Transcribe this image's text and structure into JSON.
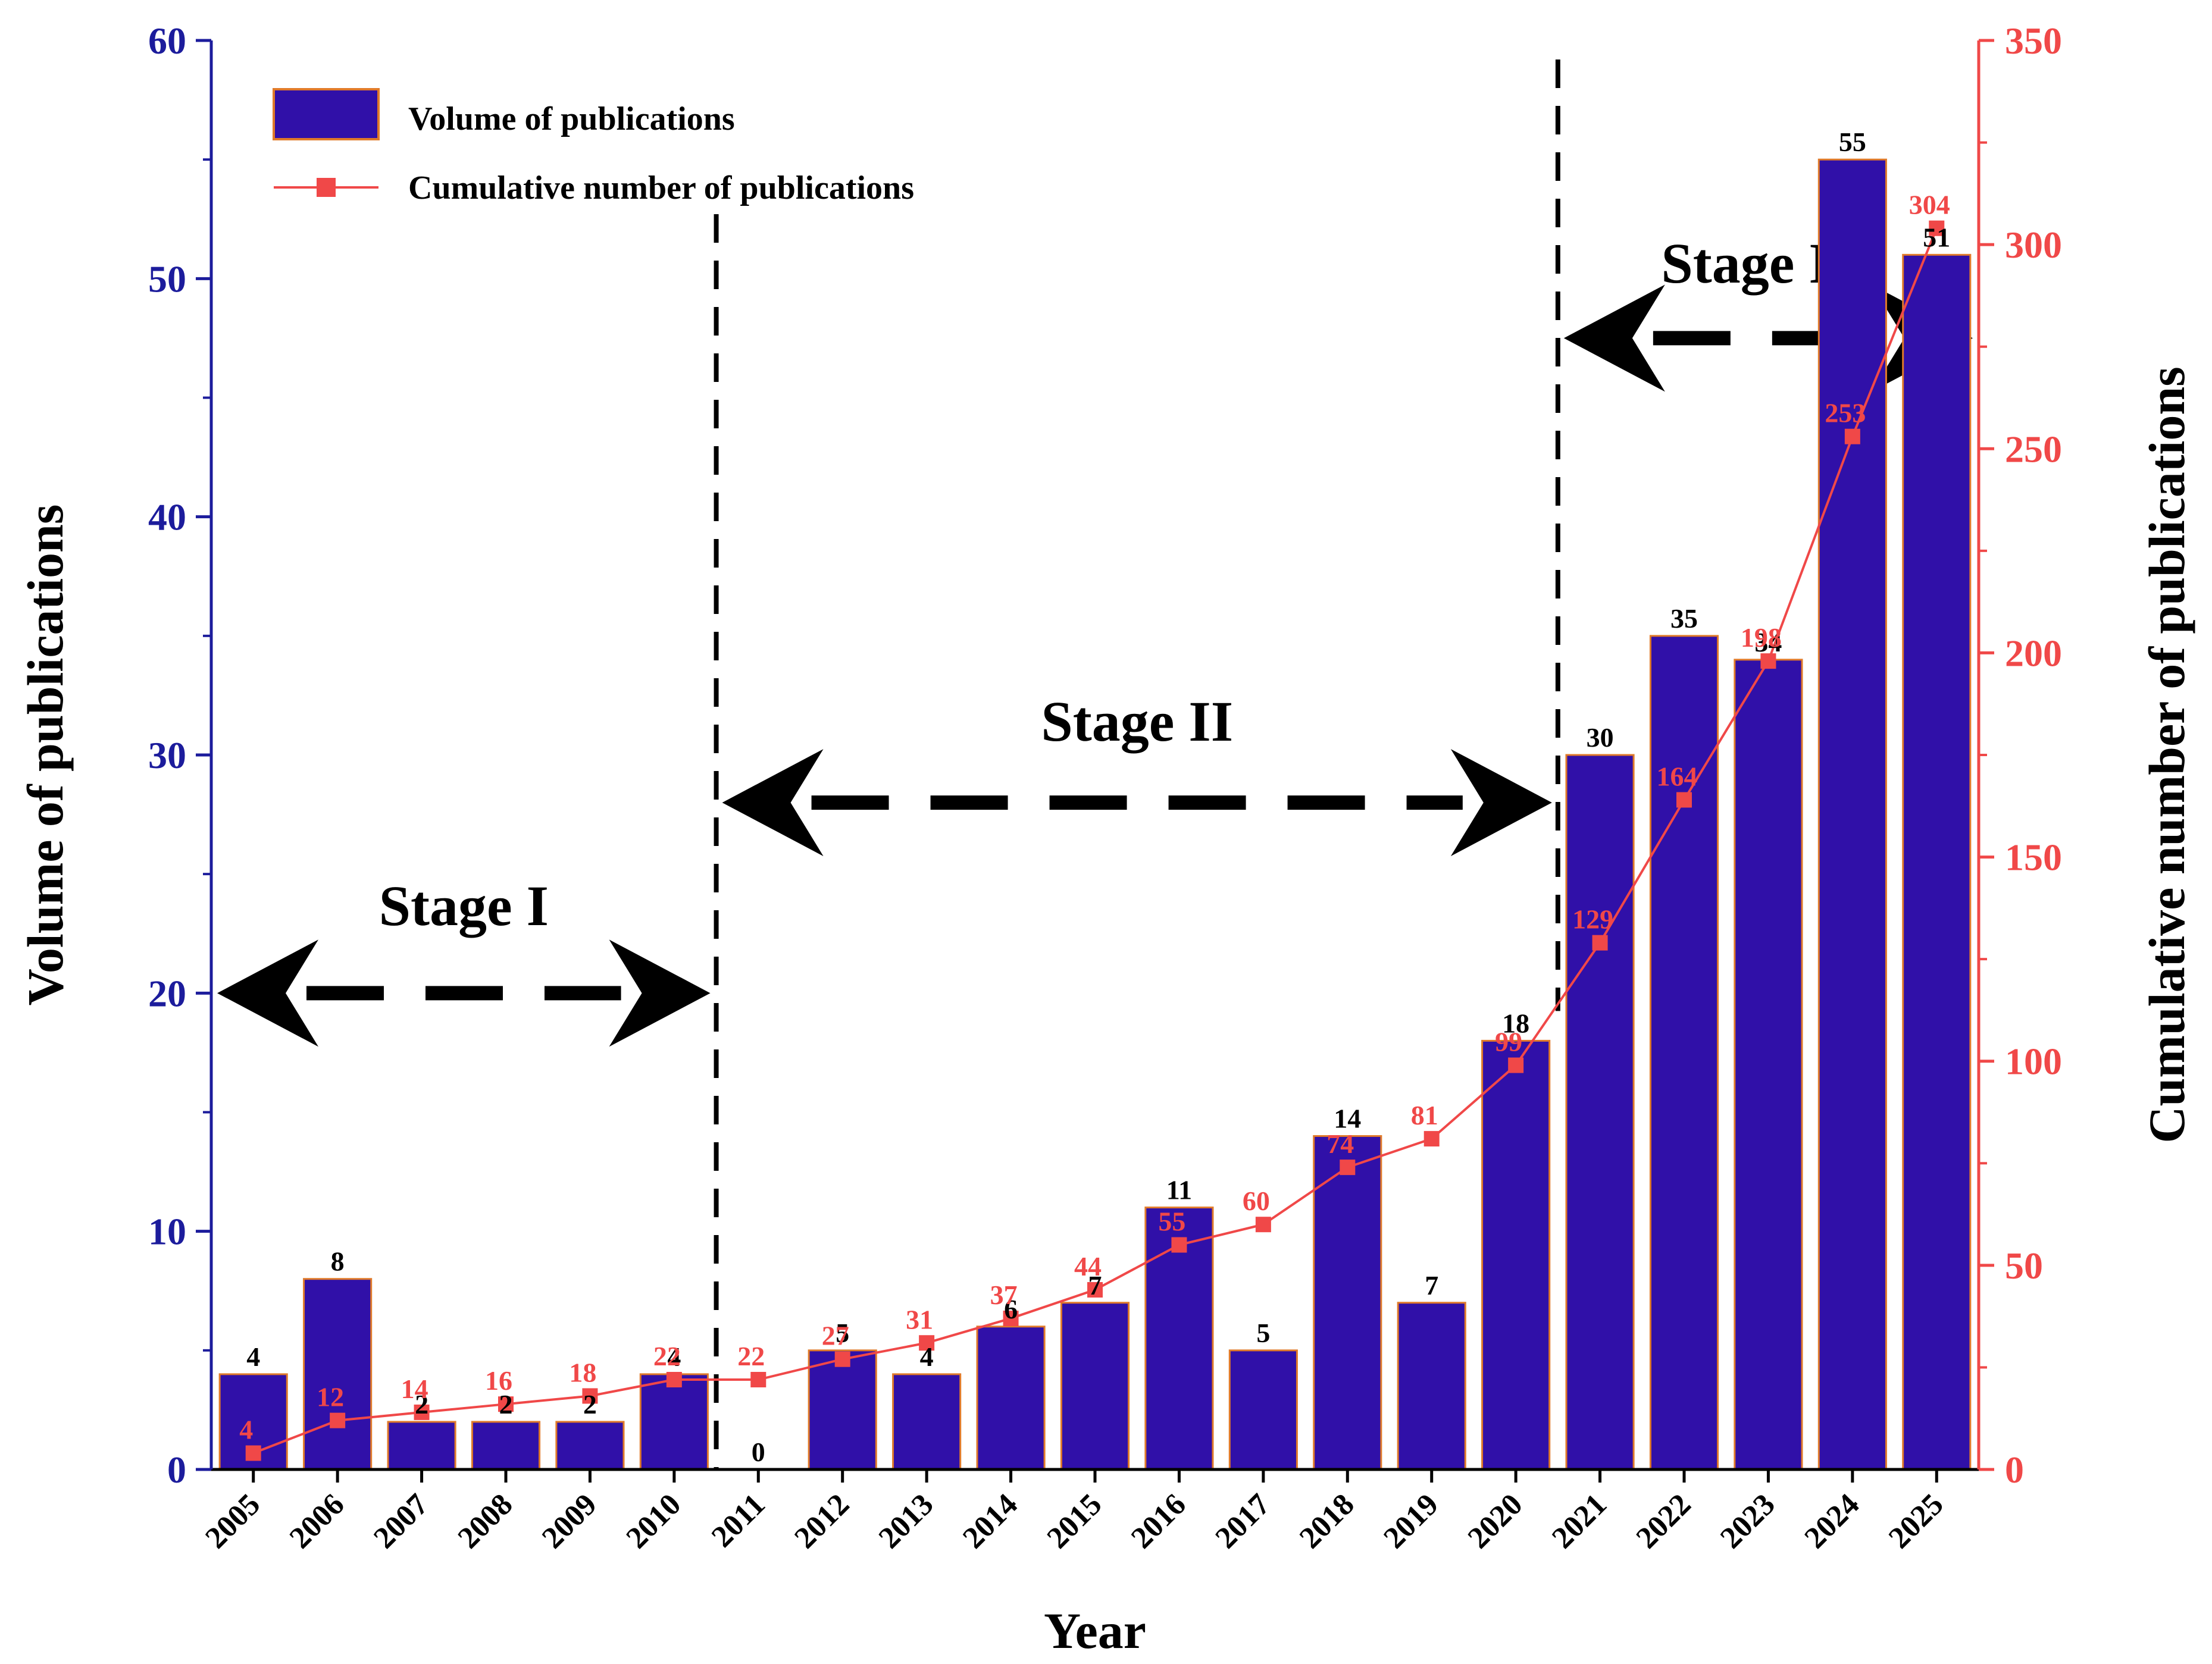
{
  "chart_data": {
    "type": "bar",
    "categories": [
      "2005",
      "2006",
      "2007",
      "2008",
      "2009",
      "2010",
      "2011",
      "2012",
      "2013",
      "2014",
      "2015",
      "2016",
      "2017",
      "2018",
      "2019",
      "2020",
      "2021",
      "2022",
      "2023",
      "2024",
      "2025"
    ],
    "series": [
      {
        "name": "Volume of publications",
        "type": "bar",
        "axis": "left",
        "values": [
          4,
          8,
          2,
          2,
          2,
          4,
          0,
          5,
          4,
          6,
          7,
          11,
          5,
          14,
          7,
          18,
          30,
          35,
          34,
          55,
          51
        ]
      },
      {
        "name": "Cumulative number of publications",
        "type": "line",
        "axis": "right",
        "values": [
          4,
          12,
          14,
          16,
          18,
          22,
          22,
          27,
          31,
          37,
          44,
          55,
          60,
          74,
          81,
          99,
          129,
          164,
          198,
          253,
          304
        ]
      }
    ],
    "xlabel": "Year",
    "ylabel": "Volume of publications",
    "y2label": "Cumulative number of publications",
    "ylim": [
      0,
      60
    ],
    "y2lim": [
      0,
      350
    ],
    "yticks": [
      0,
      10,
      20,
      30,
      40,
      50,
      60
    ],
    "y2ticks": [
      0,
      50,
      100,
      150,
      200,
      250,
      300,
      350
    ],
    "grid": false,
    "legend": "top-left",
    "annotations": [
      {
        "text": "Stage I",
        "from": "2004.5",
        "to": "2010.5"
      },
      {
        "text": "Stage II",
        "from": "2010.5",
        "to": "2020.5"
      },
      {
        "text": "Stage III",
        "from": "2020.5",
        "to": "2025.5"
      }
    ],
    "colors": {
      "bar_fill": "#3010A8",
      "bar_edge": "#E07A2A",
      "line": "#F04848",
      "left_axis": "#1C1C9C",
      "right_axis": "#F04848",
      "text": "#000000"
    }
  }
}
